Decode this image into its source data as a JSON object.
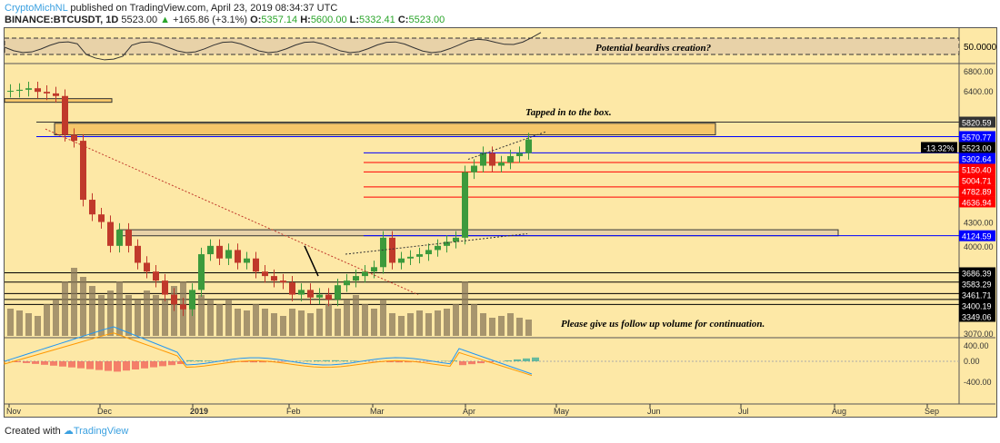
{
  "header": {
    "author": "CryptoMichNL",
    "published": " published on TradingView.com, April 23, 2019 08:34:37 UTC",
    "symbol": "BINANCE:BTCUSDT, 1D",
    "last": "5523.00",
    "change": "+165.86 (+3.1%)",
    "o_label": "O:",
    "o": "5357.14",
    "h_label": "H:",
    "h": "5600.00",
    "l_label": "L:",
    "l": "5332.41",
    "c_label": "C:",
    "c": "5523.00"
  },
  "footer": {
    "created": "Created with",
    "brand": "TradingView"
  },
  "annotations": {
    "rsi_note": "Potential beardivs creation?",
    "box_note": "Tapped in to the box.",
    "volume_note": "Please give us follow up volume for continuation.",
    "pct_badge": "-13.32%"
  },
  "colors": {
    "bg": "#fde8a6",
    "up": "#3c9a3c",
    "down": "#c0392b",
    "blue": "#0000ff",
    "red": "#ff0000",
    "black": "#000000"
  },
  "chart_data": {
    "type": "candlestick",
    "title": "BINANCE:BTCUSDT, 1D",
    "x_ticks": [
      "Nov",
      "Dec",
      "2019",
      "Feb",
      "Mar",
      "Apr",
      "May",
      "Jun",
      "Jul",
      "Aug",
      "Sep"
    ],
    "price_ticks": [
      "6800.00",
      "6400.00",
      "4300.00",
      "4000.00",
      "3070.00"
    ],
    "rsi_tick": "50.0000",
    "macd_ticks": [
      "400.00",
      "0.00",
      "-400.00"
    ],
    "levels": [
      {
        "value": "5820.59",
        "color": "#333333"
      },
      {
        "value": "5570.77",
        "color": "#0000ff"
      },
      {
        "value": "5523.00",
        "color": "#000000"
      },
      {
        "value": "5302.64",
        "color": "#0000ff"
      },
      {
        "value": "5150.40",
        "color": "#ff0000"
      },
      {
        "value": "5004.71",
        "color": "#ff0000"
      },
      {
        "value": "4782.89",
        "color": "#ff0000"
      },
      {
        "value": "4636.94",
        "color": "#ff0000"
      },
      {
        "value": "4124.59",
        "color": "#0000ff"
      },
      {
        "value": "3686.39",
        "color": "#000000"
      },
      {
        "value": "3583.29",
        "color": "#000000"
      },
      {
        "value": "3461.71",
        "color": "#000000"
      },
      {
        "value": "3400.19",
        "color": "#000000"
      },
      {
        "value": "3349.06",
        "color": "#000000"
      }
    ],
    "closes": [
      6400,
      6420,
      6450,
      6380,
      6350,
      6300,
      5600,
      5500,
      4600,
      4400,
      4300,
      4000,
      4200,
      4000,
      3800,
      3700,
      3600,
      3450,
      3350,
      3300,
      3500,
      3900,
      4000,
      3850,
      3950,
      3800,
      3850,
      3700,
      3650,
      3600,
      3580,
      3450,
      3500,
      3420,
      3450,
      3400,
      3550,
      3600,
      3650,
      3700,
      3750,
      4100,
      3800,
      3850,
      3870,
      3900,
      3950,
      4000,
      4050,
      4100,
      5000,
      5100,
      5300,
      5100,
      5150,
      5250,
      5300,
      5523
    ],
    "volumes": [
      30,
      28,
      25,
      22,
      35,
      40,
      60,
      75,
      65,
      55,
      45,
      50,
      60,
      45,
      40,
      50,
      45,
      40,
      55,
      60,
      50,
      45,
      40,
      35,
      40,
      30,
      28,
      35,
      30,
      25,
      22,
      30,
      28,
      25,
      30,
      35,
      30,
      40,
      45,
      35,
      30,
      40,
      25,
      22,
      25,
      28,
      25,
      28,
      30,
      35,
      60,
      35,
      25,
      20,
      22,
      25,
      20,
      18
    ]
  }
}
